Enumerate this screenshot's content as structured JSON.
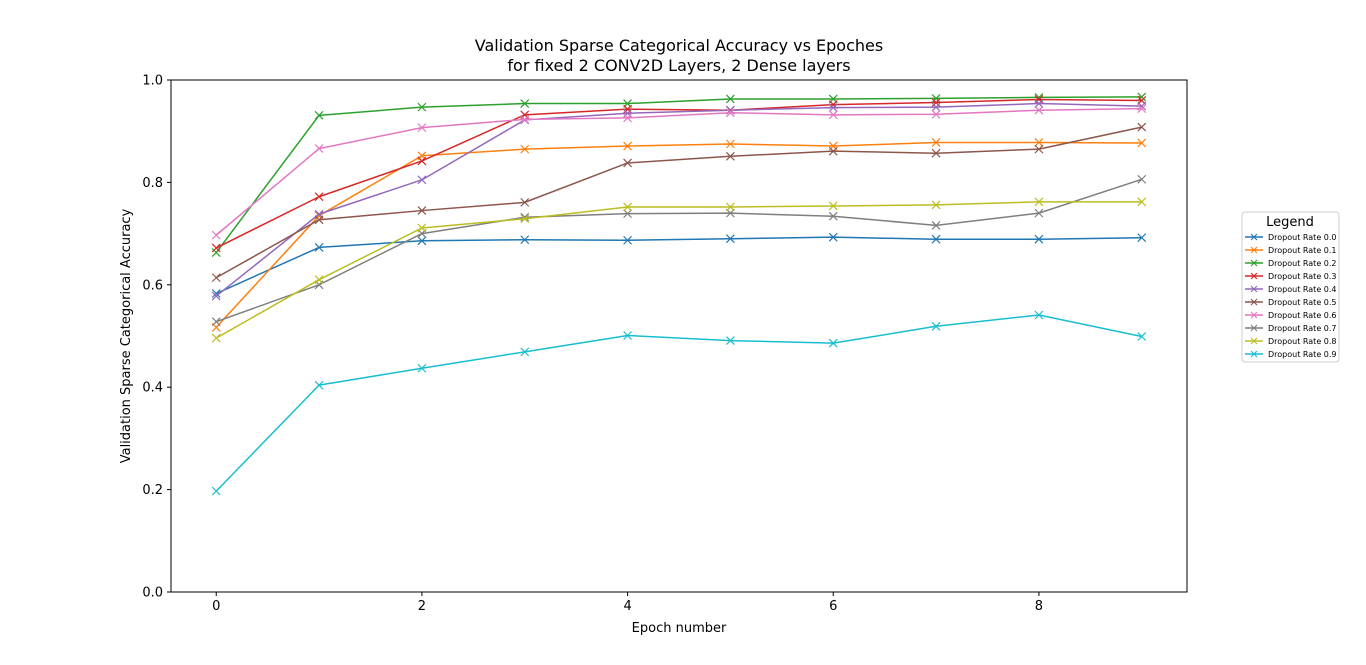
{
  "chart_data": {
    "type": "line",
    "title_line1": "Validation Sparse Categorical Accuracy vs Epoches",
    "title_line2": "for fixed 2 CONV2D Layers, 2 Dense layers",
    "xlabel": "Epoch number",
    "ylabel": "Validation Sparse Categorical Accuracy",
    "xlim": [
      -0.44,
      9.44
    ],
    "ylim": [
      0.0,
      1.0
    ],
    "xticks": [
      0,
      2,
      4,
      6,
      8
    ],
    "yticks": [
      0.0,
      0.2,
      0.4,
      0.6,
      0.8,
      1.0
    ],
    "ytick_labels": [
      "0.0",
      "0.2",
      "0.4",
      "0.6",
      "0.8",
      "1.0"
    ],
    "grid": false,
    "marker": "x",
    "legend": {
      "title": "Legend",
      "placement": "center-right-outside"
    },
    "x": [
      0,
      1,
      2,
      3,
      4,
      5,
      6,
      7,
      8,
      9
    ],
    "series": [
      {
        "name": "Dropout Rate 0.0",
        "color": "#1f77b4",
        "values": [
          0.583,
          0.673,
          0.686,
          0.688,
          0.687,
          0.69,
          0.693,
          0.689,
          0.689,
          0.692
        ]
      },
      {
        "name": "Dropout Rate 0.1",
        "color": "#ff7f0e",
        "values": [
          0.517,
          0.735,
          0.852,
          0.865,
          0.871,
          0.875,
          0.871,
          0.878,
          0.878,
          0.877
        ]
      },
      {
        "name": "Dropout Rate 0.2",
        "color": "#2ca02c",
        "values": [
          0.663,
          0.931,
          0.947,
          0.954,
          0.954,
          0.963,
          0.963,
          0.964,
          0.966,
          0.967
        ]
      },
      {
        "name": "Dropout Rate 0.3",
        "color": "#d62728",
        "values": [
          0.672,
          0.772,
          0.842,
          0.932,
          0.943,
          0.941,
          0.952,
          0.956,
          0.962,
          0.96
        ]
      },
      {
        "name": "Dropout Rate 0.4",
        "color": "#9467bd",
        "values": [
          0.578,
          0.738,
          0.805,
          0.922,
          0.935,
          0.941,
          0.946,
          0.947,
          0.954,
          0.949
        ]
      },
      {
        "name": "Dropout Rate 0.5",
        "color": "#8c564b",
        "values": [
          0.614,
          0.727,
          0.745,
          0.761,
          0.838,
          0.851,
          0.861,
          0.857,
          0.865,
          0.908
        ]
      },
      {
        "name": "Dropout Rate 0.6",
        "color": "#e377c2",
        "values": [
          0.697,
          0.866,
          0.907,
          0.923,
          0.926,
          0.936,
          0.932,
          0.933,
          0.941,
          0.944
        ]
      },
      {
        "name": "Dropout Rate 0.7",
        "color": "#7f7f7f",
        "values": [
          0.528,
          0.6,
          0.7,
          0.732,
          0.739,
          0.74,
          0.734,
          0.716,
          0.74,
          0.806
        ]
      },
      {
        "name": "Dropout Rate 0.8",
        "color": "#bcbd22",
        "values": [
          0.496,
          0.61,
          0.711,
          0.729,
          0.752,
          0.752,
          0.754,
          0.756,
          0.762,
          0.762
        ]
      },
      {
        "name": "Dropout Rate 0.9",
        "color": "#17becf",
        "values": [
          0.197,
          0.404,
          0.437,
          0.469,
          0.501,
          0.491,
          0.486,
          0.519,
          0.541,
          0.499
        ]
      }
    ]
  }
}
